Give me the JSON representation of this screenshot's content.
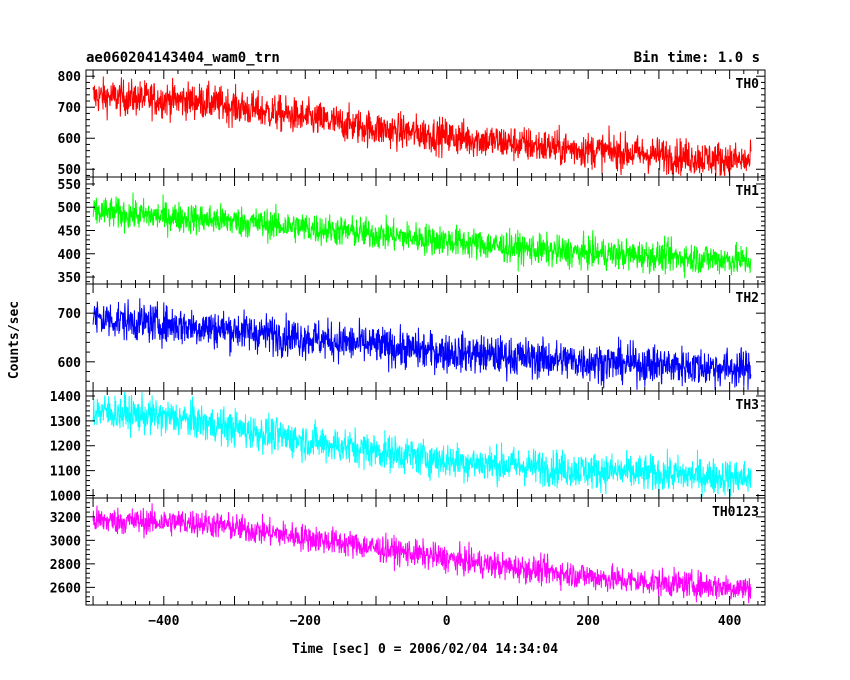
{
  "chart_data": {
    "type": "line",
    "title": "ae060204143404_wam0_trn",
    "subtitle": "Bin time: 1.0 s",
    "xlabel": "Time [sec] 0 = 2006/02/04 14:34:04",
    "ylabel": "Counts/sec",
    "xlim": [
      -510,
      450
    ],
    "x_range": [
      -500,
      430
    ],
    "xticks": [
      -400,
      -200,
      0,
      200,
      400
    ],
    "grid": false,
    "panels": [
      {
        "name": "TH0",
        "color": "#ff0000",
        "ylim": [
          475,
          820
        ],
        "yticks": [
          500,
          600,
          700,
          800
        ],
        "trend": [
          [
            -500,
            735
          ],
          [
            -350,
            720
          ],
          [
            -100,
            630
          ],
          [
            150,
            570
          ],
          [
            430,
            525
          ]
        ],
        "noise": 55
      },
      {
        "name": "TH1",
        "color": "#00ff00",
        "ylim": [
          335,
          565
        ],
        "yticks": [
          350,
          400,
          450,
          500,
          550
        ],
        "trend": [
          [
            -500,
            490
          ],
          [
            -300,
            470
          ],
          [
            -50,
            435
          ],
          [
            150,
            405
          ],
          [
            430,
            385
          ]
        ],
        "noise": 32
      },
      {
        "name": "TH2",
        "color": "#0000ff",
        "ylim": [
          540,
          760
        ],
        "yticks": [
          600,
          700
        ],
        "trend": [
          [
            -500,
            690
          ],
          [
            -300,
            665
          ],
          [
            -50,
            625
          ],
          [
            200,
            600
          ],
          [
            430,
            585
          ]
        ],
        "noise": 38
      },
      {
        "name": "TH3",
        "color": "#00ffff",
        "ylim": [
          990,
          1420
        ],
        "yticks": [
          1000,
          1100,
          1200,
          1300,
          1400
        ],
        "trend": [
          [
            -500,
            1340
          ],
          [
            -380,
            1310
          ],
          [
            -200,
            1220
          ],
          [
            0,
            1140
          ],
          [
            200,
            1100
          ],
          [
            430,
            1070
          ]
        ],
        "noise": 70
      },
      {
        "name": "TH0123",
        "color": "#ff00ff",
        "ylim": [
          2450,
          3360
        ],
        "yticks": [
          2600,
          2800,
          3000,
          3200
        ],
        "trend": [
          [
            -500,
            3170
          ],
          [
            -350,
            3150
          ],
          [
            -150,
            2980
          ],
          [
            50,
            2800
          ],
          [
            250,
            2660
          ],
          [
            430,
            2590
          ]
        ],
        "noise": 110
      }
    ]
  }
}
